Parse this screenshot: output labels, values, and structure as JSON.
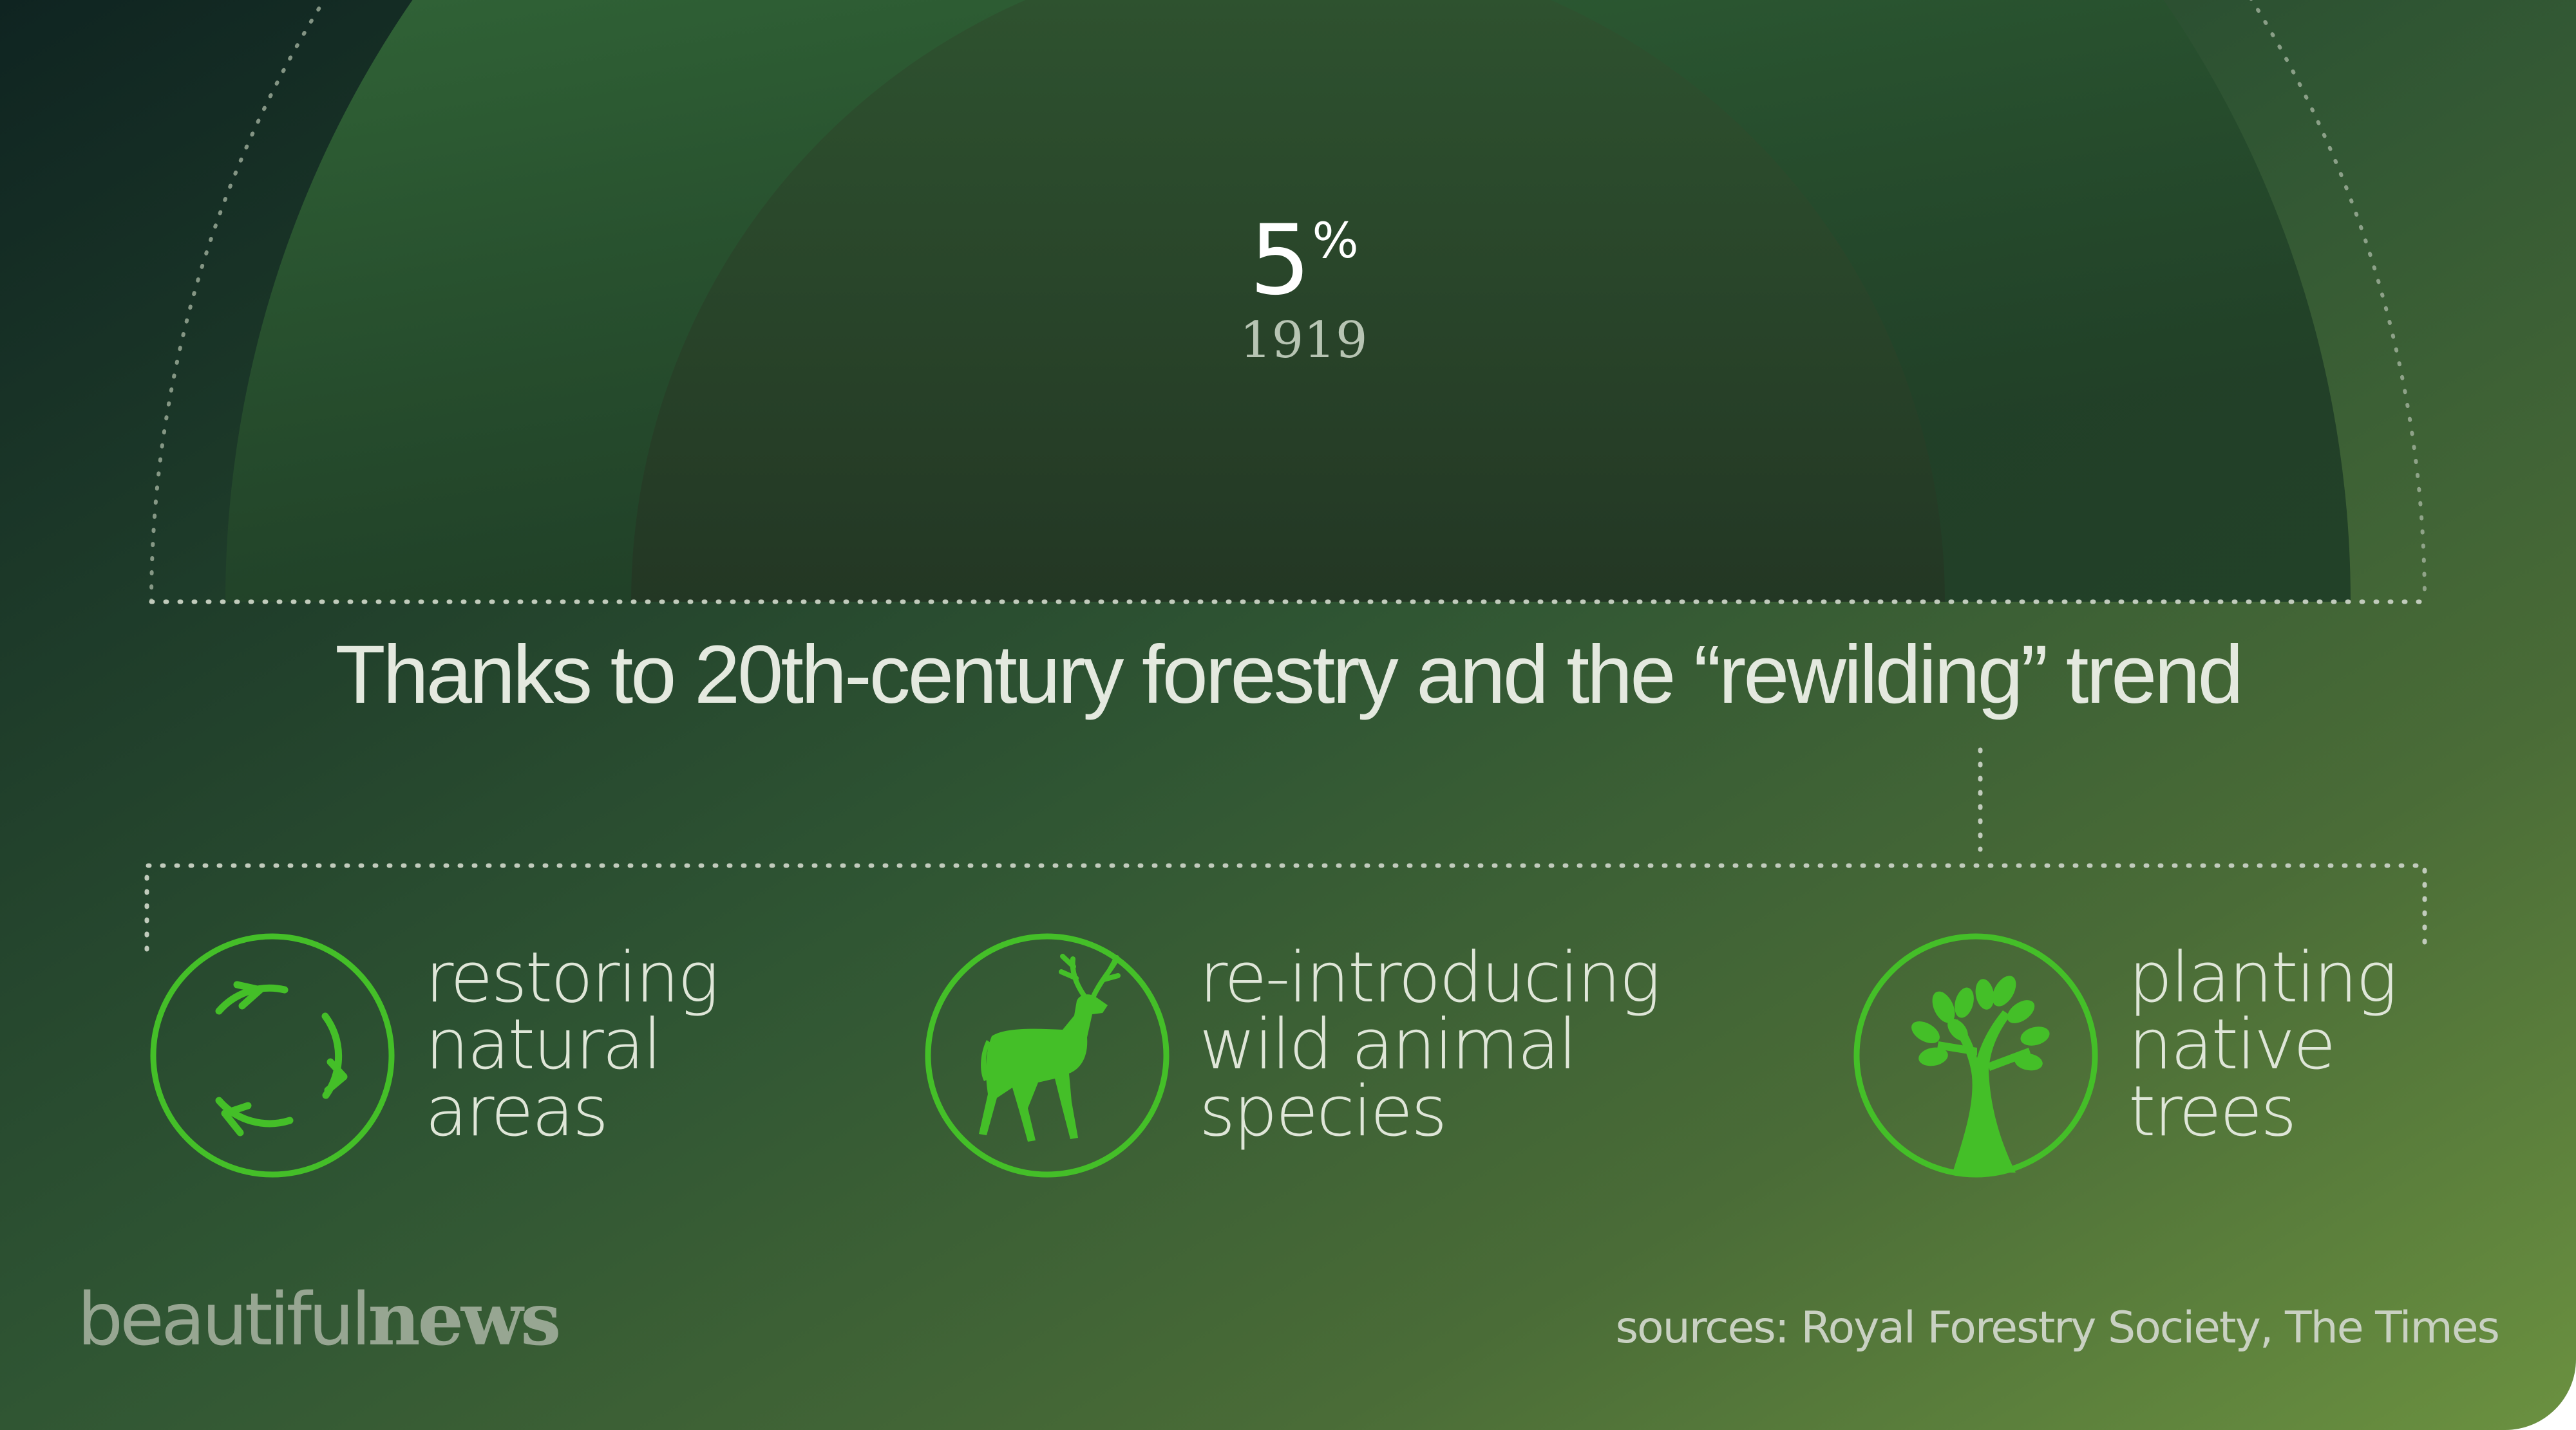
{
  "stat": {
    "value": "5",
    "unit": "%",
    "year": "1919"
  },
  "headline": "Thanks to 20th-century forestry and the “rewilding” trend",
  "features": [
    {
      "icon": "recycle-arrows-icon",
      "lines": [
        "restoring",
        "natural",
        "areas"
      ]
    },
    {
      "icon": "deer-icon",
      "lines": [
        "re-introducing",
        "wild animal",
        "species"
      ]
    },
    {
      "icon": "tree-icon",
      "lines": [
        "planting",
        "native",
        "trees"
      ]
    }
  ],
  "brand": {
    "light": "beautiful",
    "bold": "news"
  },
  "sources": "sources: Royal Forestry Society, The Times",
  "colors": {
    "accent": "#44bf28",
    "text": "#e4e9df",
    "muted": "#b7c4b3"
  }
}
